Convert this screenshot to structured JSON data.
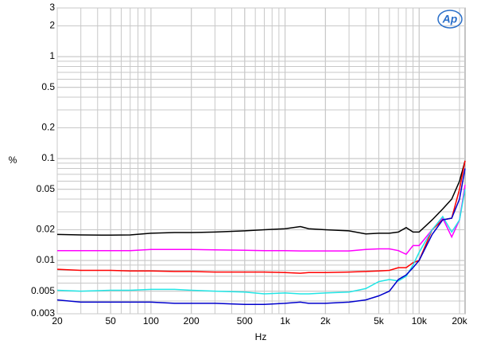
{
  "chart_data": {
    "type": "line",
    "logo": "Ap",
    "xlabel": "Hz",
    "ylabel": "%",
    "xscale": "log",
    "yscale": "log",
    "grid": true,
    "xlim": [
      20,
      22000
    ],
    "ylim": [
      0.003,
      3
    ],
    "xticks": [
      20,
      50,
      100,
      200,
      500,
      {
        "value": 1000,
        "label": "1k"
      },
      {
        "value": 2000,
        "label": "2k"
      },
      {
        "value": 5000,
        "label": "5k"
      },
      {
        "value": 10000,
        "label": "10k"
      },
      {
        "value": 20000,
        "label": "20k"
      }
    ],
    "yticks": [
      0.003,
      0.005,
      0.01,
      0.02,
      0.05,
      0.1,
      0.2,
      0.5,
      1,
      2,
      3
    ],
    "x": [
      20,
      30,
      50,
      70,
      100,
      150,
      200,
      300,
      500,
      700,
      1000,
      1300,
      1500,
      2000,
      3000,
      4000,
      5000,
      6000,
      7000,
      8000,
      9000,
      10000,
      12500,
      15000,
      17500,
      20000,
      22000
    ],
    "series": [
      {
        "name": "black",
        "color": "#000000",
        "values": [
          0.018,
          0.0178,
          0.0177,
          0.0178,
          0.0185,
          0.0188,
          0.0188,
          0.019,
          0.0195,
          0.02,
          0.0205,
          0.0215,
          0.0205,
          0.02,
          0.0195,
          0.0182,
          0.0185,
          0.0185,
          0.019,
          0.021,
          0.019,
          0.019,
          0.025,
          0.032,
          0.04,
          0.06,
          0.095
        ]
      },
      {
        "name": "magenta",
        "color": "#ff00ff",
        "values": [
          0.0125,
          0.0125,
          0.0125,
          0.0125,
          0.0128,
          0.0128,
          0.0128,
          0.0127,
          0.0126,
          0.0125,
          0.0125,
          0.0124,
          0.0124,
          0.0124,
          0.0124,
          0.0128,
          0.013,
          0.013,
          0.0125,
          0.0115,
          0.014,
          0.014,
          0.02,
          0.026,
          0.017,
          0.025,
          0.055
        ]
      },
      {
        "name": "red",
        "color": "#ff0000",
        "values": [
          0.0082,
          0.008,
          0.008,
          0.0079,
          0.0079,
          0.0078,
          0.0078,
          0.0077,
          0.0077,
          0.0077,
          0.0076,
          0.0075,
          0.0076,
          0.0076,
          0.0077,
          0.0078,
          0.0079,
          0.008,
          0.0085,
          0.0085,
          0.0095,
          0.01,
          0.02,
          0.025,
          0.026,
          0.05,
          0.095
        ]
      },
      {
        "name": "cyan",
        "color": "#22e5e5",
        "values": [
          0.0051,
          0.005,
          0.0051,
          0.0051,
          0.0052,
          0.0052,
          0.0051,
          0.005,
          0.0049,
          0.0047,
          0.0048,
          0.0047,
          0.0047,
          0.0048,
          0.0049,
          0.0053,
          0.0062,
          0.0065,
          0.0063,
          0.007,
          0.009,
          0.012,
          0.02,
          0.027,
          0.019,
          0.025,
          0.05
        ]
      },
      {
        "name": "blue",
        "color": "#0000cc",
        "values": [
          0.0041,
          0.0039,
          0.0039,
          0.0039,
          0.0039,
          0.0038,
          0.0038,
          0.0038,
          0.0037,
          0.0037,
          0.0038,
          0.0039,
          0.0038,
          0.0038,
          0.0039,
          0.0041,
          0.0045,
          0.005,
          0.0065,
          0.0072,
          0.0085,
          0.01,
          0.018,
          0.025,
          0.026,
          0.04,
          0.08
        ]
      }
    ]
  }
}
